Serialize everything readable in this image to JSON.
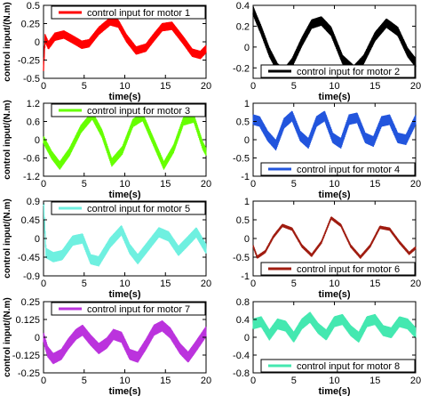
{
  "figure": {
    "ylabel": "control input/(N.m)",
    "xlabel": "time(s)"
  },
  "chart_data": [
    {
      "type": "line",
      "legend": "control input for motor 1",
      "legend_placement": "top",
      "color": "#ff0000",
      "xlim": [
        0,
        20
      ],
      "ylim": [
        -0.5,
        0.5
      ],
      "xticks": [
        "0",
        "5",
        "10",
        "15",
        "20"
      ],
      "yticks": [
        "0.5",
        "0.25",
        "0",
        "-0.25",
        "-0.5"
      ],
      "x": [
        0,
        0.2,
        0.6,
        1.4,
        2.5,
        3.8,
        4.7,
        5.6,
        6.8,
        8.2,
        9.2,
        10.2,
        11.4,
        12.6,
        13.5,
        14.6,
        15.8,
        17.2,
        18.3,
        19.3,
        20
      ],
      "y": [
        -0.35,
        0.05,
        -0.05,
        0.07,
        0.1,
        0.02,
        -0.04,
        -0.02,
        0.15,
        0.28,
        0.25,
        0.05,
        -0.12,
        -0.08,
        0.05,
        0.2,
        0.22,
        0.02,
        -0.15,
        -0.18,
        -0.1
      ],
      "band": 0.05
    },
    {
      "type": "line",
      "legend": "control input for motor 2",
      "legend_placement": "bottom",
      "color": "#000000",
      "xlim": [
        0,
        20
      ],
      "ylim": [
        -0.3,
        0.4
      ],
      "xticks": [
        "0",
        "5",
        "10",
        "15",
        "20"
      ],
      "yticks": [
        "0.4",
        "0.2",
        "0",
        "-0.2"
      ],
      "x": [
        0,
        0.4,
        1,
        2,
        3,
        3.8,
        4.8,
        6,
        7.2,
        8.4,
        9.6,
        11,
        12.4,
        13.6,
        15,
        16.4,
        17.8,
        19,
        20
      ],
      "y": [
        0.35,
        0.27,
        0.16,
        -0.05,
        -0.2,
        -0.25,
        -0.15,
        0.05,
        0.22,
        0.25,
        0.15,
        -0.12,
        -0.22,
        -0.12,
        0.1,
        0.23,
        0.15,
        -0.05,
        -0.15
      ],
      "band": 0.04
    },
    {
      "type": "line",
      "legend": "control input for motor 3",
      "legend_placement": "top",
      "color": "#66ff00",
      "xlim": [
        0,
        20
      ],
      "ylim": [
        -1.2,
        1.2
      ],
      "xticks": [
        "0",
        "5",
        "10",
        "15",
        "20"
      ],
      "yticks": [
        "1.2",
        "0.6",
        "0",
        "-0.6",
        "-1.2"
      ],
      "x": [
        0,
        1,
        2,
        3.2,
        4.6,
        6,
        7.2,
        8.4,
        9.7,
        11,
        12.2,
        13.5,
        14.8,
        16,
        17.2,
        18.5,
        19.6,
        20
      ],
      "y": [
        0,
        -0.5,
        -0.85,
        -0.4,
        0.35,
        0.8,
        0.2,
        -0.75,
        -0.35,
        0.55,
        0.75,
        -0.05,
        -0.85,
        -0.3,
        0.6,
        0.7,
        -0.2,
        -0.4
      ],
      "band": 0.12
    },
    {
      "type": "line",
      "legend": "control input for motor 4",
      "legend_placement": "bottom",
      "color": "#2255dd",
      "xlim": [
        0,
        20
      ],
      "ylim": [
        -1,
        1
      ],
      "xticks": [
        "0",
        "5",
        "10",
        "15",
        "20"
      ],
      "yticks": [
        "1",
        "0.5",
        "0",
        "-0.5",
        "-1"
      ],
      "x": [
        0,
        0.8,
        1.8,
        2.8,
        3.8,
        4.8,
        5.8,
        6.8,
        7.8,
        8.8,
        9.8,
        10.8,
        11.8,
        12.8,
        13.8,
        14.8,
        15.8,
        16.8,
        17.8,
        18.8,
        20
      ],
      "y": [
        0.55,
        0.5,
        0.1,
        -0.15,
        0.45,
        0.65,
        0.1,
        -0.1,
        0.5,
        0.65,
        0.05,
        -0.1,
        0.55,
        0.6,
        0.05,
        -0.05,
        0.5,
        0.55,
        0.05,
        0.0,
        0.55
      ],
      "band": 0.13
    },
    {
      "type": "line",
      "legend": "control input for motor 5",
      "legend_placement": "top",
      "color": "#6ff0e0",
      "xlim": [
        0,
        20
      ],
      "ylim": [
        -0.9,
        0.9
      ],
      "xticks": [
        "0",
        "5",
        "10",
        "15",
        "20"
      ],
      "yticks": [
        "0.9",
        "0.45",
        "0",
        "-0.45",
        "-0.9"
      ],
      "x": [
        0,
        0.3,
        1.2,
        2.3,
        3.6,
        4.8,
        5.8,
        6.8,
        8.2,
        9.6,
        10.6,
        11.6,
        12.8,
        14.2,
        15.4,
        16.6,
        17.6,
        18.8,
        20
      ],
      "y": [
        0.9,
        -0.35,
        -0.45,
        -0.4,
        -0.05,
        0.0,
        -0.5,
        -0.55,
        -0.1,
        0.2,
        -0.25,
        -0.5,
        -0.2,
        0.15,
        0.05,
        -0.3,
        -0.1,
        0.15,
        -0.25
      ],
      "band": 0.11
    },
    {
      "type": "line",
      "legend": "control input for motor 6",
      "legend_placement": "bottom",
      "color": "#a01c10",
      "xlim": [
        0,
        20
      ],
      "ylim": [
        -1,
        1
      ],
      "xticks": [
        "0",
        "5",
        "10",
        "15",
        "20"
      ],
      "yticks": [
        "1",
        "0.5",
        "0",
        "-0.5",
        "-1"
      ],
      "x": [
        0,
        0.5,
        1.5,
        2.5,
        3.6,
        4.8,
        6,
        7.2,
        8.4,
        9.6,
        10.8,
        12,
        13.2,
        14.4,
        15.6,
        16.8,
        18,
        19.2,
        20
      ],
      "y": [
        -0.2,
        -0.5,
        -0.35,
        0.05,
        0.35,
        0.25,
        -0.2,
        -0.45,
        -0.1,
        0.55,
        0.35,
        -0.2,
        -0.5,
        -0.2,
        0.3,
        0.25,
        -0.1,
        -0.4,
        -0.25
      ],
      "band": 0.03
    },
    {
      "type": "line",
      "legend": "control input for motor 7",
      "legend_placement": "top",
      "color": "#bb33dd",
      "xlim": [
        0,
        20
      ],
      "ylim": [
        -0.25,
        0.25
      ],
      "xticks": [
        "0",
        "5",
        "10",
        "15",
        "20"
      ],
      "yticks": [
        "0.25",
        "0.125",
        "0",
        "-0.125",
        "-0.25"
      ],
      "x": [
        0,
        0.5,
        1.2,
        2.2,
        3,
        4,
        4.8,
        5.8,
        6.8,
        7.8,
        8.6,
        9.6,
        10.6,
        11.6,
        12.6,
        13.6,
        14.6,
        15.6,
        16.8,
        17.8,
        18.8,
        20
      ],
      "y": [
        0.0,
        -0.1,
        -0.15,
        -0.12,
        -0.05,
        0.02,
        0.05,
        -0.02,
        -0.08,
        -0.04,
        0.02,
        0.0,
        -0.12,
        -0.14,
        -0.05,
        0.05,
        0.08,
        0.03,
        -0.08,
        -0.14,
        -0.06,
        0.04
      ],
      "band": 0.035
    },
    {
      "type": "line",
      "legend": "control input for motor 8",
      "legend_placement": "bottom",
      "color": "#44e8b0",
      "xlim": [
        0,
        20
      ],
      "ylim": [
        -0.8,
        0.8
      ],
      "xticks": [
        "0",
        "5",
        "10",
        "15",
        "20"
      ],
      "yticks": [
        "0.8",
        "0.4",
        "0",
        "-0.4",
        "-0.8"
      ],
      "x": [
        0,
        1,
        2,
        3,
        4,
        5,
        6,
        7,
        8,
        9,
        10,
        11,
        12,
        13,
        14,
        15,
        16,
        17,
        18,
        19,
        20
      ],
      "y": [
        0.3,
        0.35,
        0.05,
        0.3,
        0.25,
        0.0,
        0.3,
        0.45,
        0.2,
        0.05,
        0.35,
        0.4,
        0.15,
        0.0,
        0.35,
        0.4,
        0.15,
        0.1,
        0.35,
        0.3,
        0.1
      ],
      "band": 0.11
    }
  ]
}
